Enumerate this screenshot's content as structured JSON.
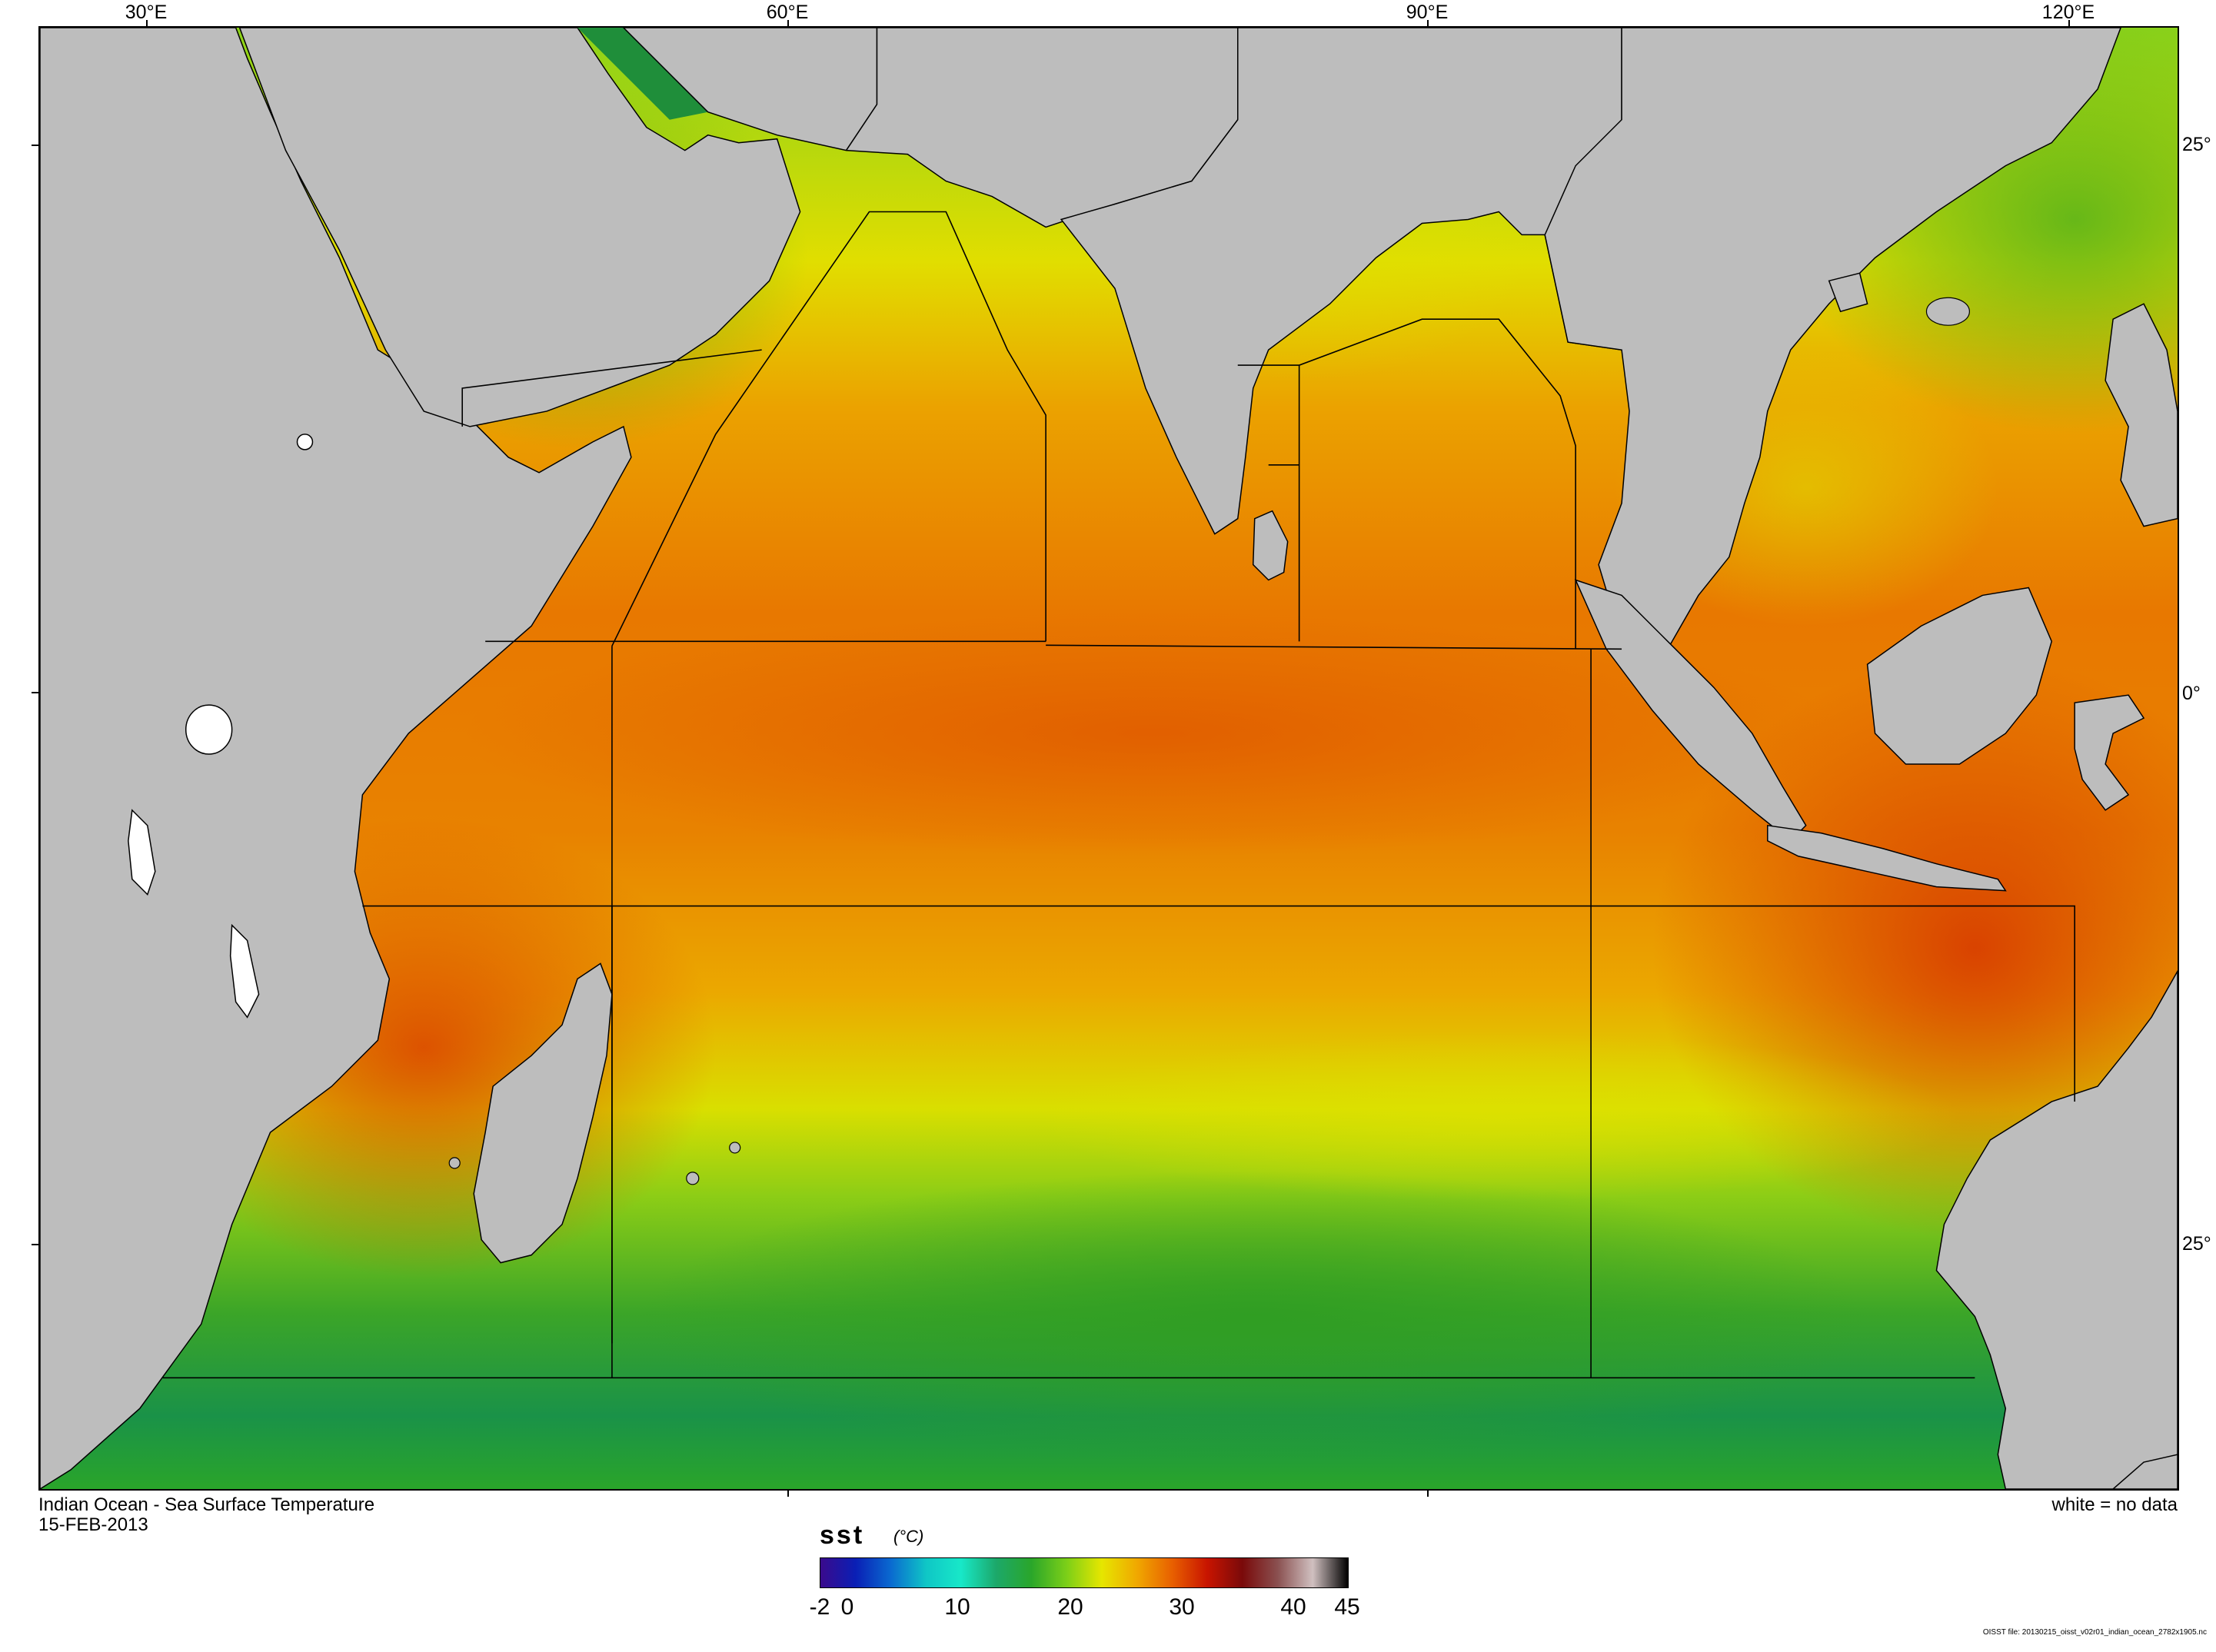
{
  "map": {
    "title": "Indian Ocean - Sea Surface Temperature",
    "date": "15-FEB-2013",
    "no_data_note": "white = no data",
    "source": "OISST file: 20130215_oisst_v02r01_indian_ocean_2782x1905.nc",
    "lon_labels": [
      "30°E",
      "60°E",
      "90°E",
      "120°E"
    ],
    "lat_labels": [
      "25°",
      "0°",
      "25°"
    ],
    "land_color": "#bdbdbd",
    "no_data_color": "#ffffff"
  },
  "colorbar": {
    "variable": "sst",
    "unit": "(°C)",
    "ticks": [
      "-2",
      "0",
      "10",
      "20",
      "30",
      "40",
      "45"
    ],
    "range": [
      -2,
      45
    ],
    "palette": [
      "#3a0a8c",
      "#0a1fb5",
      "#0a6ad0",
      "#0fc6c6",
      "#18e8c8",
      "#1ca86a",
      "#2aa62a",
      "#7ccf18",
      "#e6e600",
      "#f0a800",
      "#e86000",
      "#c81400",
      "#7a0a0a",
      "#8a5050",
      "#d0c0c0",
      "#000000"
    ]
  }
}
